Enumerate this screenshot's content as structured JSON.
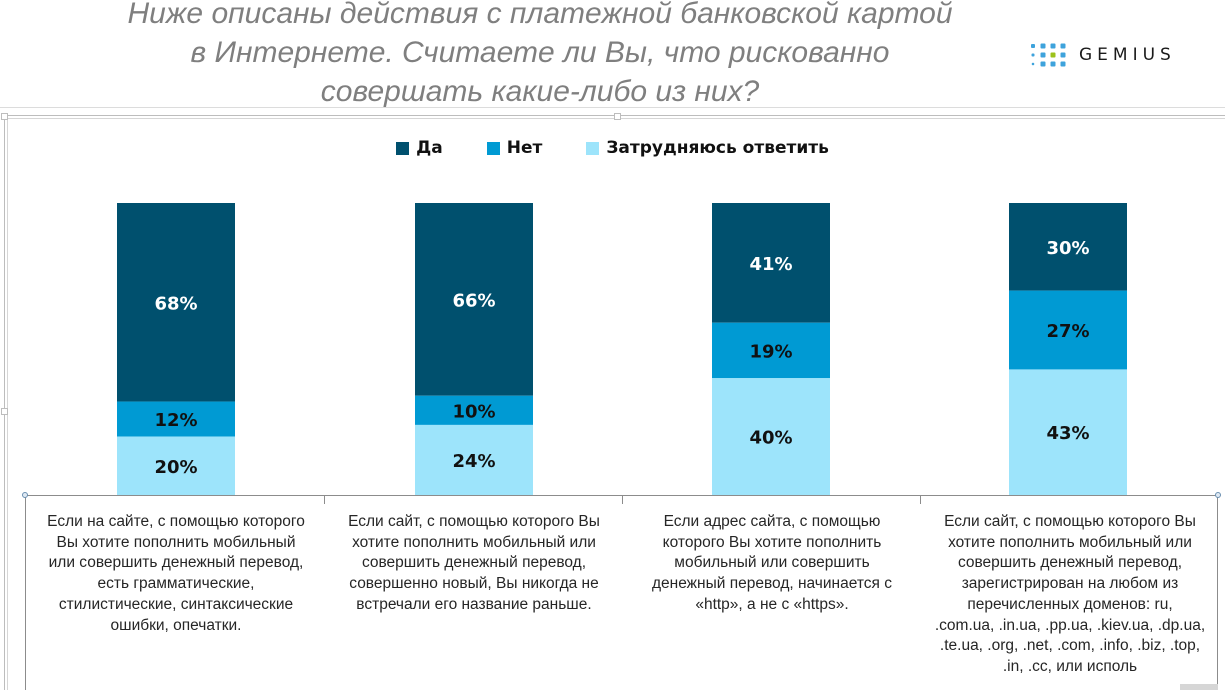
{
  "title": {
    "lines": [
      "Ниже описаны действия с платежной банковской картой",
      "в Интернете. Считаете ли Вы, что рискованно",
      "совершать какие-либо из них?"
    ]
  },
  "logo": {
    "text": "GEMIUS",
    "dot_color": "#3ea3dc",
    "accent_dot_color": "#9cc21b"
  },
  "colors": {
    "yes": "#00506e",
    "no": "#009ad3",
    "unsure": "#9de4fb",
    "axis": "#8c8c8c"
  },
  "chart_data": {
    "type": "bar",
    "stacked": true,
    "percent": true,
    "title": "Ниже описаны действия с платежной банковской картой в Интернете. Считаете ли Вы, что рискованно совершать какие-либо из них?",
    "legend_position": "top",
    "ylim": [
      0,
      100
    ],
    "grid": false,
    "categories": [
      "Если на сайте, с помощью которого Вы хотите пополнить мобильный или совершить денежный перевод, есть грамматические, стилистические, синтаксические ошибки, опечатки.",
      "Если сайт, с помощью которого Вы хотите пополнить мобильный или совершить денежный перевод, совершенно новый, Вы никогда не встречали его название раньше.",
      "Если адрес сайта, с помощью которого Вы хотите пополнить мобильный или совершить денежный перевод, начинается с «http», а не с «https».",
      "Если сайт, с помощью которого Вы хотите пополнить мобильный или совершить денежный перевод, зарегистрирован на любом из перечисленных доменов: ru, .com.ua, .in.ua, .pp.ua, .kiev.ua, .dp.ua, .te.ua, .org, .net, .com, .info, .biz, .top, .in, .cc, или исполь"
    ],
    "category_lines": [
      [
        "Если на сайте, с помощью которого",
        "Вы хотите пополнить мобильный",
        "или совершить денежный перевод,",
        "есть грамматические,",
        "стилистические, синтаксические",
        "ошибки, опечатки."
      ],
      [
        "Если сайт, с помощью которого Вы",
        "хотите пополнить мобильный или",
        "совершить денежный перевод,",
        "совершенно новый, Вы никогда не",
        "встречали его название раньше."
      ],
      [
        "Если адрес сайта, с помощью",
        "которого Вы хотите пополнить",
        "мобильный или совершить",
        "денежный перевод, начинается с",
        "«http», а не с «https»."
      ],
      [
        "Если сайт, с помощью которого Вы",
        "хотите пополнить мобильный или",
        "совершить денежный перевод,",
        "зарегистрирован на любом из",
        "перечисленных доменов: ru,",
        ".com.ua, .in.ua, .pp.ua, .kiev.ua, .dp.ua,",
        ".te.ua, .org, .net, .com, .info, .biz, .top,",
        ".in, .cc, или исполь"
      ]
    ],
    "series": [
      {
        "name": "Да",
        "values": [
          68,
          66,
          41,
          30
        ],
        "labels": [
          "68%",
          "66%",
          "41%",
          "30%"
        ],
        "color": "#00506e",
        "label_color": "#ffffff"
      },
      {
        "name": "Нет",
        "values": [
          12,
          10,
          19,
          27
        ],
        "labels": [
          "12%",
          "10%",
          "19%",
          "27%"
        ],
        "color": "#009ad3",
        "label_color": "#111111"
      },
      {
        "name": "Затрудняюсь ответить",
        "values": [
          20,
          24,
          40,
          43
        ],
        "labels": [
          "20%",
          "24%",
          "40%",
          "43%"
        ],
        "color": "#9de4fb",
        "label_color": "#111111"
      }
    ]
  }
}
